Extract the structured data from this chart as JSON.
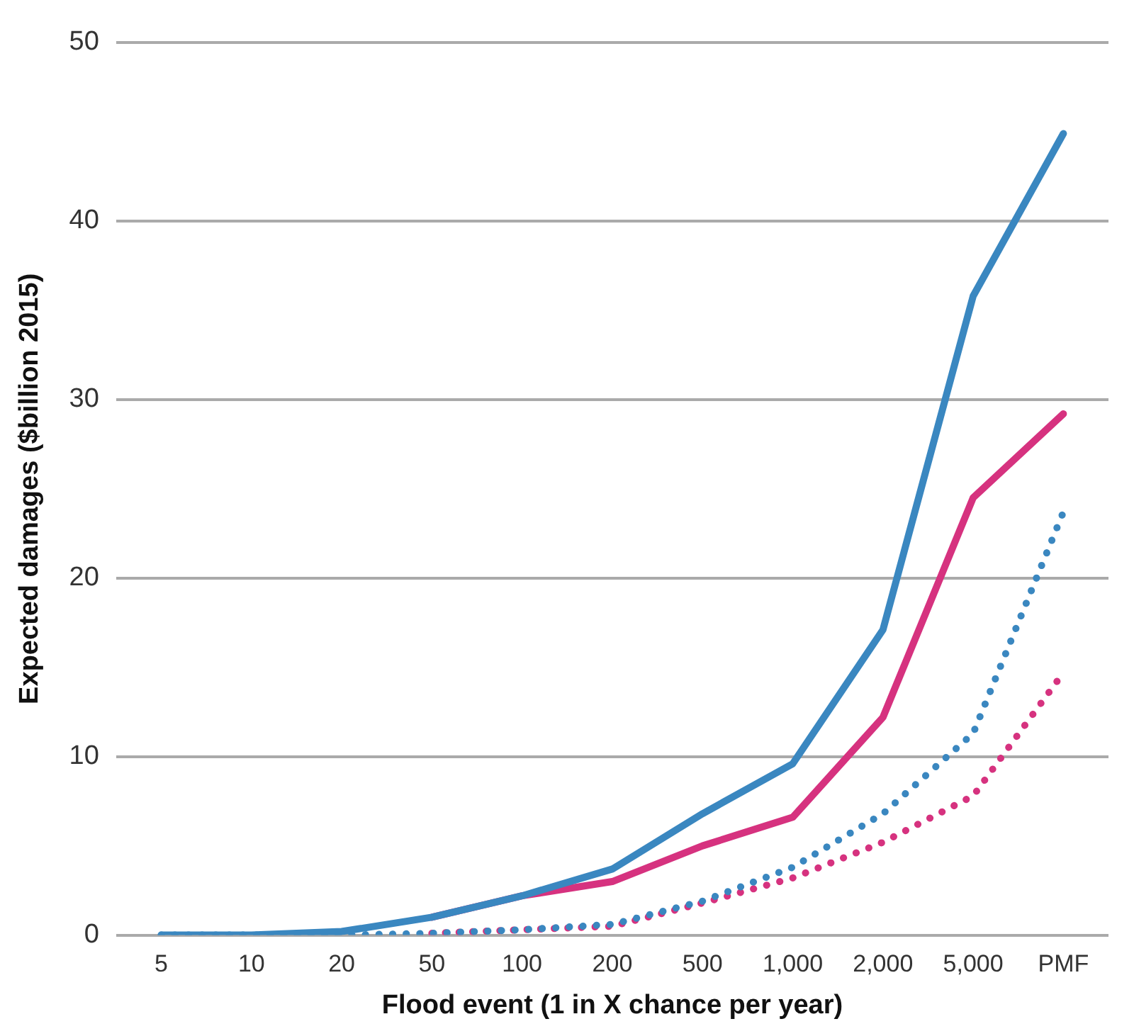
{
  "chart_data": {
    "type": "line",
    "xlabel": "Flood event (1 in X chance per year)",
    "ylabel": "Expected damages ($billion 2015)",
    "categories": [
      "5",
      "10",
      "20",
      "50",
      "100",
      "200",
      "500",
      "1,000",
      "2,000",
      "5,000",
      "PMF"
    ],
    "series": [
      {
        "color": "#3a87c0",
        "line_style": "solid",
        "values": [
          0,
          0,
          0.2,
          1,
          2.2,
          3.7,
          6.8,
          9.6,
          17.1,
          35.8,
          44.9
        ]
      },
      {
        "color": "#d6327f",
        "line_style": "solid",
        "values": [
          null,
          null,
          null,
          1,
          2.2,
          3,
          5,
          6.6,
          12.2,
          24.5,
          29.2
        ]
      },
      {
        "color": "#3a87c0",
        "line_style": "dotted",
        "values": [
          0,
          0,
          0,
          0.1,
          0.3,
          0.6,
          1.9,
          3.8,
          6.8,
          11.3,
          23.7
        ]
      },
      {
        "color": "#d6327f",
        "line_style": "dotted",
        "values": [
          null,
          null,
          null,
          0.1,
          0.3,
          0.5,
          1.8,
          3.2,
          5.2,
          7.8,
          14.7
        ]
      }
    ],
    "ylim": [
      0,
      50
    ],
    "yticks": [
      0,
      10,
      20,
      30,
      40,
      50
    ],
    "grid": "y",
    "legend": false,
    "marker": "none"
  }
}
